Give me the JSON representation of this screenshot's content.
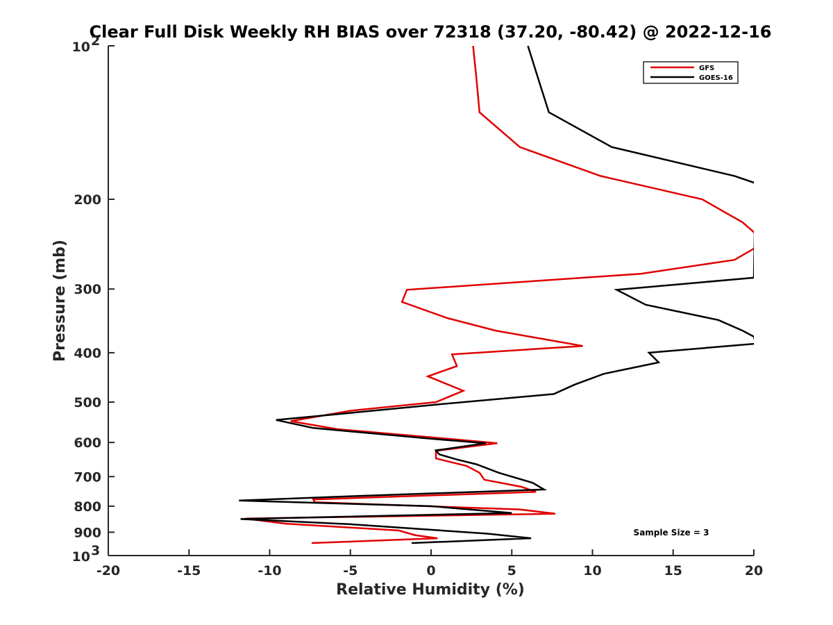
{
  "chart_data": {
    "type": "line",
    "title": "Clear Full Disk Weekly RH BIAS over 72318 (37.20, -80.42) @ 2022-12-16",
    "xlabel": "Relative Humidity (%)",
    "ylabel": "Pressure (mb)",
    "xlim": [
      -20,
      20
    ],
    "ylim": [
      100,
      1000
    ],
    "y_scale": "log",
    "y_reversed": true,
    "grid": false,
    "legend_position": "top-right",
    "x_ticks": [
      -20,
      -15,
      -10,
      -5,
      0,
      5,
      10,
      15,
      20
    ],
    "x_tick_labels": [
      "-20",
      "-15",
      "-10",
      "-5",
      "0",
      "5",
      "10",
      "15",
      "20"
    ],
    "y_ticks": [
      200,
      300,
      400,
      500,
      600,
      700,
      800,
      900
    ],
    "y_tick_labels": [
      "200",
      "300",
      "400",
      "500",
      "600",
      "700",
      "800",
      "900"
    ],
    "y_tick_top": {
      "base": "10",
      "exp": "2"
    },
    "y_tick_bottom": {
      "base": "10",
      "exp": "3"
    },
    "annotation": "Sample Size = 3",
    "series": [
      {
        "name": "GFS",
        "color": "#e00000",
        "points": [
          {
            "x": 2.6,
            "y": 100
          },
          {
            "x": 2.8,
            "y": 115
          },
          {
            "x": 3.0,
            "y": 135
          },
          {
            "x": 5.5,
            "y": 158
          },
          {
            "x": 10.5,
            "y": 180
          },
          {
            "x": 16.8,
            "y": 200
          },
          {
            "x": 19.3,
            "y": 222
          },
          {
            "x": 20.0,
            "y": 232
          },
          {
            "x": 20.2,
            "y": 240
          },
          {
            "x": 20.0,
            "y": 250
          },
          {
            "x": 18.8,
            "y": 263
          },
          {
            "x": 13.0,
            "y": 280
          },
          {
            "x": 6.0,
            "y": 290
          },
          {
            "x": -1.5,
            "y": 301
          },
          {
            "x": -1.8,
            "y": 318
          },
          {
            "x": 1.0,
            "y": 342
          },
          {
            "x": 4.0,
            "y": 362
          },
          {
            "x": 9.4,
            "y": 388
          },
          {
            "x": 1.3,
            "y": 403
          },
          {
            "x": 1.6,
            "y": 425
          },
          {
            "x": -0.2,
            "y": 445
          },
          {
            "x": 2.0,
            "y": 475
          },
          {
            "x": 0.3,
            "y": 500
          },
          {
            "x": -5.0,
            "y": 520
          },
          {
            "x": -8.7,
            "y": 545
          },
          {
            "x": -5.8,
            "y": 565
          },
          {
            "x": 0.5,
            "y": 588
          },
          {
            "x": 4.1,
            "y": 602
          },
          {
            "x": 0.3,
            "y": 623
          },
          {
            "x": 0.3,
            "y": 645
          },
          {
            "x": 2.2,
            "y": 667
          },
          {
            "x": 3.0,
            "y": 688
          },
          {
            "x": 3.3,
            "y": 710
          },
          {
            "x": 5.6,
            "y": 733
          },
          {
            "x": 6.5,
            "y": 750
          },
          {
            "x": -7.3,
            "y": 776
          },
          {
            "x": -7.2,
            "y": 786
          },
          {
            "x": 5.5,
            "y": 812
          },
          {
            "x": 7.7,
            "y": 828
          },
          {
            "x": -11.5,
            "y": 846
          },
          {
            "x": -9.0,
            "y": 866
          },
          {
            "x": -2.0,
            "y": 893
          },
          {
            "x": -1.0,
            "y": 912
          },
          {
            "x": 0.4,
            "y": 925
          },
          {
            "x": -7.4,
            "y": 945
          }
        ]
      },
      {
        "name": "GOES-16",
        "color": "#000000",
        "points": [
          {
            "x": 6.0,
            "y": 100
          },
          {
            "x": 6.6,
            "y": 115
          },
          {
            "x": 7.3,
            "y": 135
          },
          {
            "x": 11.2,
            "y": 158
          },
          {
            "x": 18.8,
            "y": 180
          },
          {
            "x": 20.1,
            "y": 186
          },
          {
            "x": 20.0,
            "y": 285
          },
          {
            "x": 11.5,
            "y": 301
          },
          {
            "x": 13.3,
            "y": 322
          },
          {
            "x": 17.8,
            "y": 345
          },
          {
            "x": 19.3,
            "y": 362
          },
          {
            "x": 20.0,
            "y": 372
          },
          {
            "x": 20.1,
            "y": 384
          },
          {
            "x": 13.5,
            "y": 400
          },
          {
            "x": 14.1,
            "y": 418
          },
          {
            "x": 10.7,
            "y": 440
          },
          {
            "x": 8.9,
            "y": 462
          },
          {
            "x": 7.6,
            "y": 482
          },
          {
            "x": 0.5,
            "y": 505
          },
          {
            "x": -5.0,
            "y": 525
          },
          {
            "x": -9.6,
            "y": 542
          },
          {
            "x": -7.3,
            "y": 562
          },
          {
            "x": 0.0,
            "y": 590
          },
          {
            "x": 3.4,
            "y": 602
          },
          {
            "x": 0.3,
            "y": 622
          },
          {
            "x": 0.5,
            "y": 633
          },
          {
            "x": 1.6,
            "y": 648
          },
          {
            "x": 2.8,
            "y": 662
          },
          {
            "x": 4.2,
            "y": 688
          },
          {
            "x": 6.3,
            "y": 720
          },
          {
            "x": 7.0,
            "y": 742
          },
          {
            "x": -5.0,
            "y": 765
          },
          {
            "x": -11.9,
            "y": 780
          },
          {
            "x": 0.0,
            "y": 800
          },
          {
            "x": 5.0,
            "y": 825
          },
          {
            "x": -11.8,
            "y": 848
          },
          {
            "x": -5.0,
            "y": 868
          },
          {
            "x": 3.5,
            "y": 906
          },
          {
            "x": 6.2,
            "y": 925
          },
          {
            "x": -1.2,
            "y": 945
          }
        ]
      }
    ]
  }
}
